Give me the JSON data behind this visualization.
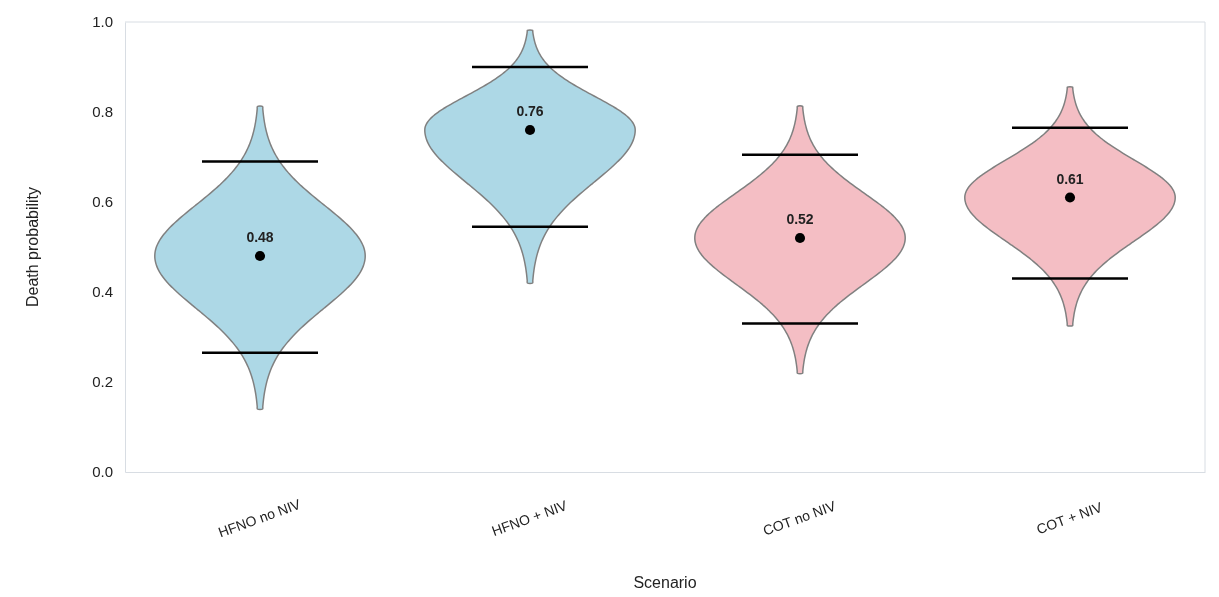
{
  "chart_data": {
    "type": "scatter",
    "xlabel": "Scenario",
    "ylabel": "Death probability",
    "categories": [
      "HFNO no NIV",
      "HFNO + NIV",
      "COT no NIV",
      "COT + NIV"
    ],
    "series": [
      {
        "color": "#000000",
        "values": [
          0.48,
          0.76,
          0.52,
          0.61
        ],
        "errors": [
          [
            0.265,
            0.69
          ],
          [
            0.545,
            0.9
          ],
          [
            0.33,
            0.705
          ],
          [
            0.43,
            0.765
          ]
        ]
      }
    ],
    "ylim": [
      0,
      1
    ],
    "yticks": [
      {
        "value": 0,
        "label": "0.0"
      },
      {
        "value": 0.2,
        "label": "0.2"
      },
      {
        "value": 0.4,
        "label": "0.4"
      },
      {
        "value": 0.6,
        "label": "0.6"
      },
      {
        "value": 0.8,
        "label": "0.8"
      },
      {
        "value": 1,
        "label": "1.0"
      }
    ],
    "data_labels": true,
    "marker": "circle"
  }
}
